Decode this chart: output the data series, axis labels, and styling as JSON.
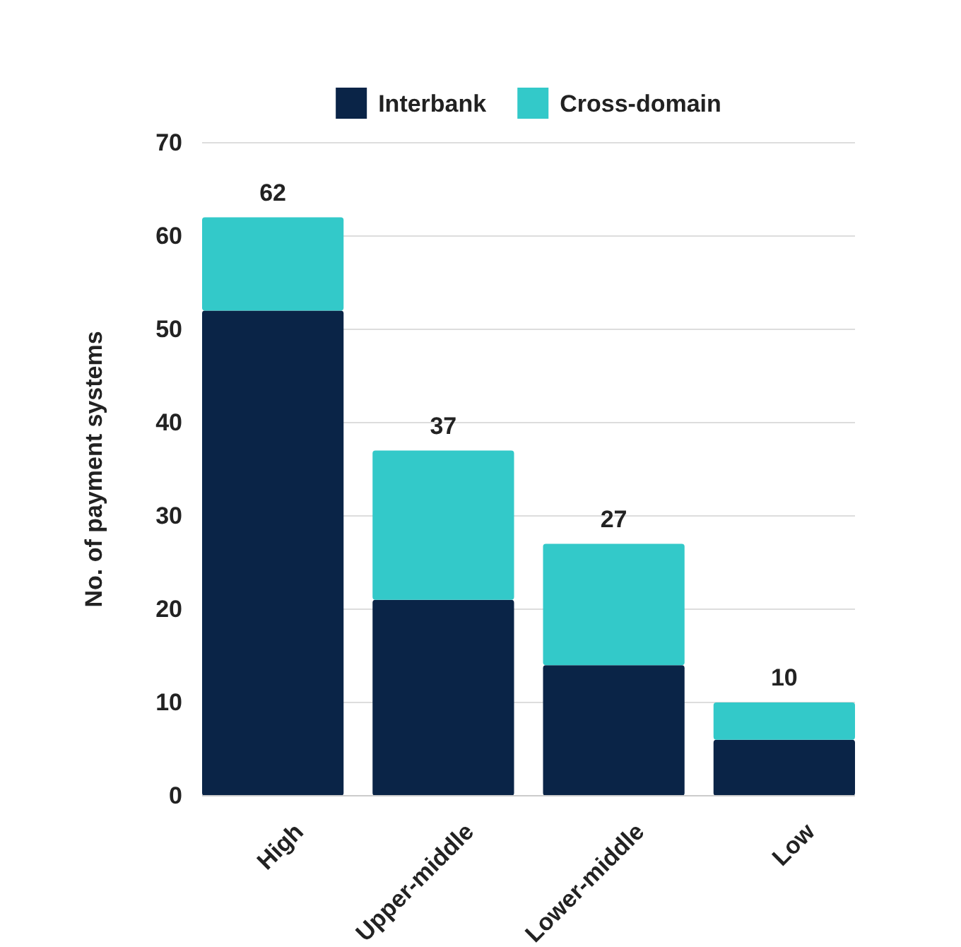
{
  "chart_data": {
    "type": "bar",
    "stacked": true,
    "ylabel": "No. of payment systems",
    "categories": [
      "High",
      "Upper-middle",
      "Lower-middle",
      "Low"
    ],
    "series": [
      {
        "name": "Interbank",
        "color": "#0a2447",
        "values": [
          52,
          21,
          14,
          6
        ]
      },
      {
        "name": "Cross-domain",
        "color": "#33c9c9",
        "values": [
          10,
          16,
          13,
          4
        ]
      }
    ],
    "totals": [
      "62",
      "37",
      "27",
      "10"
    ],
    "ylim": [
      0,
      70
    ],
    "yticks": [
      0,
      10,
      20,
      30,
      40,
      50,
      60,
      70
    ],
    "grid": "y",
    "legend": "top"
  }
}
